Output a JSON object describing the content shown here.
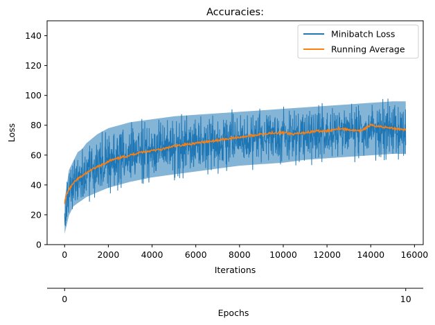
{
  "chart_data": {
    "type": "line",
    "title": "Accuracies:",
    "xlabel": "Iterations",
    "ylabel": "Loss",
    "secondary_xlabel": "Epochs",
    "xlim": [
      -800,
      16400
    ],
    "ylim": [
      0,
      150
    ],
    "xticks": [
      0,
      2000,
      4000,
      6000,
      8000,
      10000,
      12000,
      14000,
      16000
    ],
    "yticks": [
      0,
      20,
      40,
      60,
      80,
      100,
      120,
      140
    ],
    "secondary_xticks": [
      0,
      10
    ],
    "secondary_xlim": [
      0,
      10
    ],
    "legend_position": "top-right",
    "colors": {
      "minibatch": "#1f77b4",
      "running": "#ff7f0e"
    },
    "series": [
      {
        "name": "Minibatch Loss",
        "style": "noisy-band",
        "x": [
          0,
          200,
          400,
          600,
          800,
          1000,
          1500,
          2000,
          2500,
          3000,
          4000,
          5000,
          6000,
          7000,
          8000,
          9000,
          10000,
          11000,
          12000,
          13000,
          14000,
          15000,
          15600
        ],
        "lower": [
          6,
          18,
          24,
          26,
          28,
          30,
          33,
          36,
          38,
          40,
          43,
          45,
          47,
          49,
          51,
          52,
          53,
          55,
          56,
          57,
          58,
          59,
          59
        ],
        "upper": [
          30,
          50,
          56,
          62,
          64,
          68,
          74,
          78,
          80,
          82,
          84,
          86,
          87,
          88,
          89,
          90,
          91,
          92,
          93,
          94,
          95,
          96,
          96
        ]
      },
      {
        "name": "Running Average",
        "x": [
          0,
          100,
          200,
          300,
          400,
          600,
          800,
          1000,
          1200,
          1500,
          1800,
          2000,
          2500,
          3000,
          3500,
          4000,
          4500,
          5000,
          5500,
          6000,
          6500,
          7000,
          7500,
          8000,
          8500,
          9000,
          9500,
          10000,
          10500,
          11000,
          11500,
          12000,
          12500,
          13000,
          13500,
          14000,
          14500,
          15000,
          15600
        ],
        "y": [
          28,
          34,
          37,
          39,
          41,
          44,
          46,
          48,
          50,
          52,
          54,
          56,
          58,
          60,
          62,
          63,
          64,
          66,
          67,
          68,
          69,
          70,
          71,
          72,
          73,
          74,
          75,
          75,
          74,
          75,
          76,
          76,
          78,
          77,
          76,
          80,
          79,
          78,
          77
        ]
      }
    ]
  }
}
